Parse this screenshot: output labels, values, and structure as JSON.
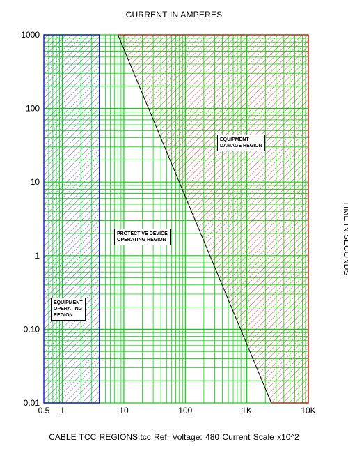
{
  "chart_data": {
    "type": "line",
    "title": "CURRENT IN AMPERES",
    "xlabel": "CURRENT IN AMPERES",
    "ylabel": "TIME IN SECONDS",
    "x_scale": "log",
    "y_scale": "log",
    "xlim": [
      0.5,
      10000
    ],
    "ylim": [
      0.01,
      1000
    ],
    "x_ticks": [
      {
        "value": 0.5,
        "label": "0.5"
      },
      {
        "value": 1,
        "label": "1"
      },
      {
        "value": 10,
        "label": "10"
      },
      {
        "value": 100,
        "label": "100"
      },
      {
        "value": 1000,
        "label": "1K"
      },
      {
        "value": 10000,
        "label": "10K"
      }
    ],
    "y_ticks": [
      {
        "value": 1000,
        "label": "1000"
      },
      {
        "value": 100,
        "label": "100"
      },
      {
        "value": 10,
        "label": "10"
      },
      {
        "value": 1,
        "label": "1"
      },
      {
        "value": 0.1,
        "label": "0.10"
      },
      {
        "value": 0.01,
        "label": "0.01"
      }
    ],
    "grid": true,
    "grid_color": "#00dd00",
    "series": [
      {
        "values": [
          {
            "x": 8,
            "y": 1000
          },
          {
            "x": 2500,
            "y": 0.01
          }
        ],
        "color": "#000000"
      }
    ],
    "regions": [
      {
        "label": "EQUIPMENT OPERATING REGION",
        "lines": [
          "EQUIPMENT",
          "OPERATING",
          "REGION"
        ],
        "x_range": [
          0.5,
          4
        ],
        "color": "#0000cc"
      },
      {
        "label": "PROTECTIVE DEVICE OPERATING REGION",
        "lines": [
          "PROTECTIVE DEVICE",
          "OPERATING REGION"
        ],
        "color": "#00dd00"
      },
      {
        "label": "EQUIPMENT DAMAGE REGION",
        "lines": [
          "EQUIPMENT",
          "DAMAGE REGION"
        ],
        "color": "#dd0000"
      }
    ]
  },
  "footer": "CABLE TCC REGIONS.tcc    Ref. Voltage: 480    Current Scale x10^2"
}
